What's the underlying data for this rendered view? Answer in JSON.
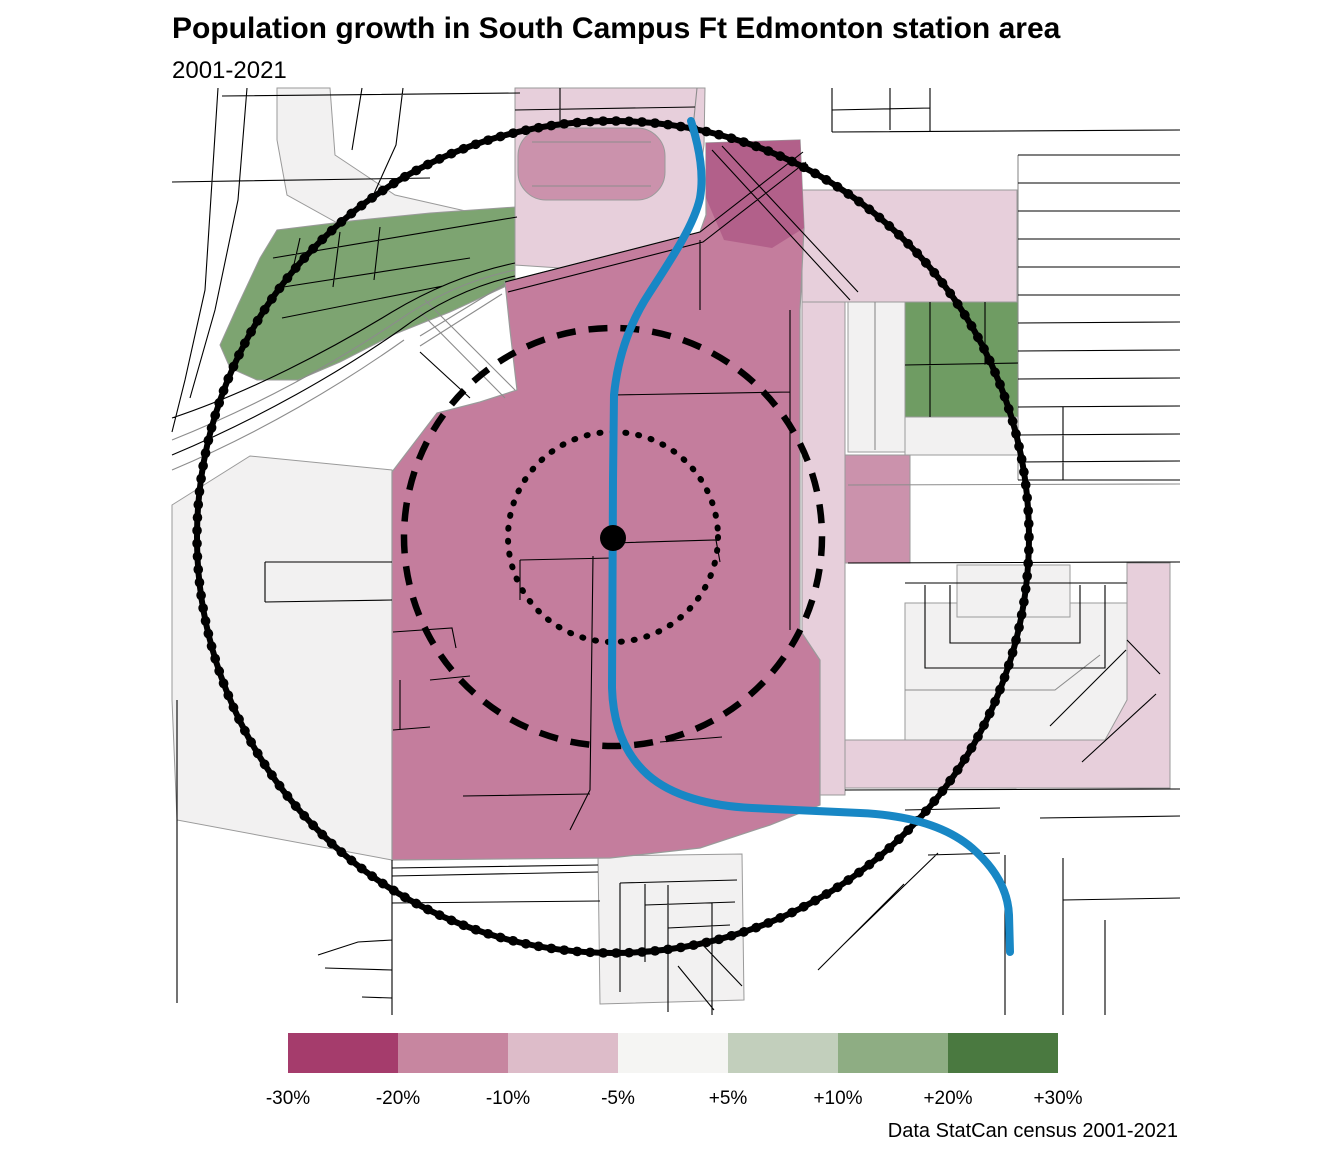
{
  "header": {
    "title": "Population growth in South Campus Ft Edmonton station area",
    "subtitle": "2001-2021"
  },
  "footer": {
    "caption": "Data StatCan census 2001-2021"
  },
  "legend": {
    "bin_colors": [
      "#a53c6c",
      "#c786a0",
      "#ddbcc9",
      "#f5f5f3",
      "#c2cfbc",
      "#8ead83",
      "#4a7940"
    ],
    "labels": [
      "-30%",
      "-20%",
      "-10%",
      "-5%",
      "+5%",
      "+10%",
      "+20%",
      "+30%"
    ]
  },
  "map": {
    "circle_styles": [
      "dotted",
      "dashed",
      "solid"
    ],
    "colors": {
      "region_main": "#c47d9d",
      "region_dark": "#b2608a",
      "region_light_pink": "#e7cfdb",
      "region_med_pink": "#cb92ac",
      "region_green_band": "#7da471",
      "region_green_block": "#6f9c63",
      "offwhite": "#f2f1f1",
      "street_black": "#000000",
      "street_gray": "#8c8c8c",
      "border_gray": "#9a9a9a",
      "lrt_blue": "#1887c5",
      "circle_black": "#000000",
      "background": "#ffffff"
    }
  }
}
